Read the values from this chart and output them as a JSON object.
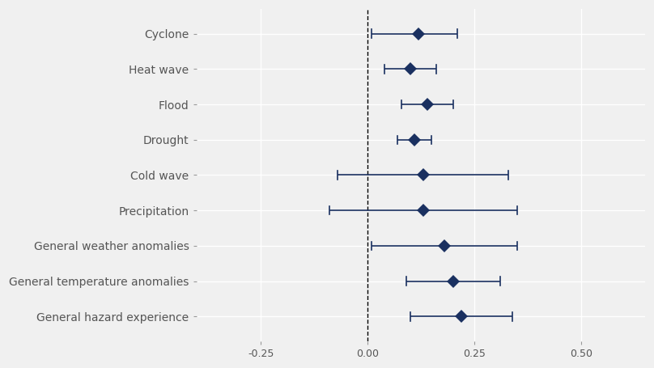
{
  "categories": [
    "Cyclone",
    "Heat wave",
    "Flood",
    "Drought",
    "Cold wave",
    "Precipitation",
    "General weather anomalies",
    "General temperature anomalies",
    "General hazard experience"
  ],
  "estimates": [
    0.12,
    0.1,
    0.14,
    0.11,
    0.13,
    0.13,
    0.18,
    0.2,
    0.22
  ],
  "ci_lower": [
    0.01,
    0.04,
    0.08,
    0.07,
    -0.07,
    -0.09,
    0.01,
    0.09,
    0.1
  ],
  "ci_upper": [
    0.21,
    0.16,
    0.2,
    0.15,
    0.33,
    0.35,
    0.35,
    0.31,
    0.34
  ],
  "vline_x": 0.0,
  "marker_color": "#1a3060",
  "line_color": "#1a3060",
  "marker_size": 8,
  "marker_style": "D",
  "background_color": "#f0f0f0",
  "grid_color": "#ffffff",
  "xlim": [
    -0.4,
    0.65
  ],
  "xtick_labels": [
    "-0.25",
    "0.00",
    "0.25",
    "0.50"
  ],
  "xtick_values": [
    -0.25,
    0.0,
    0.25,
    0.5
  ],
  "label_fontsize": 10,
  "tick_fontsize": 9
}
